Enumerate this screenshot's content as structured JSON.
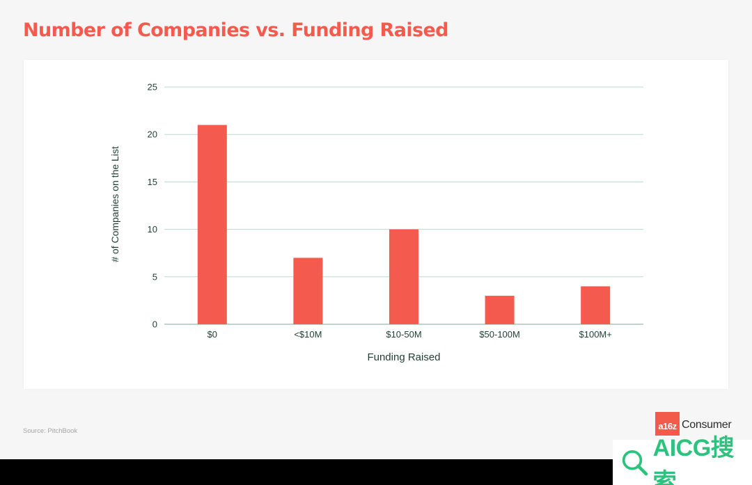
{
  "title": "Number of Companies vs. Funding Raised",
  "source": "Source: PitchBook",
  "brand": {
    "logo_text": "a16z",
    "name": "Consumer"
  },
  "watermark": {
    "text": "AICG搜索"
  },
  "colors": {
    "title": "#f55a4e",
    "bar": "#f55a4e",
    "grid": "#b8d9cc",
    "axis_text": "#1f3d34"
  },
  "chart_data": {
    "type": "bar",
    "categories": [
      "$0",
      "<$10M",
      "$10-50M",
      "$50-100M",
      "$100M+"
    ],
    "values": [
      21,
      7,
      10,
      3,
      4
    ],
    "xlabel": "Funding Raised",
    "ylabel": "# of Companies on the List",
    "ylim": [
      0,
      25
    ],
    "yticks": [
      0,
      5,
      10,
      15,
      20,
      25
    ],
    "grid": true,
    "legend": "none"
  }
}
